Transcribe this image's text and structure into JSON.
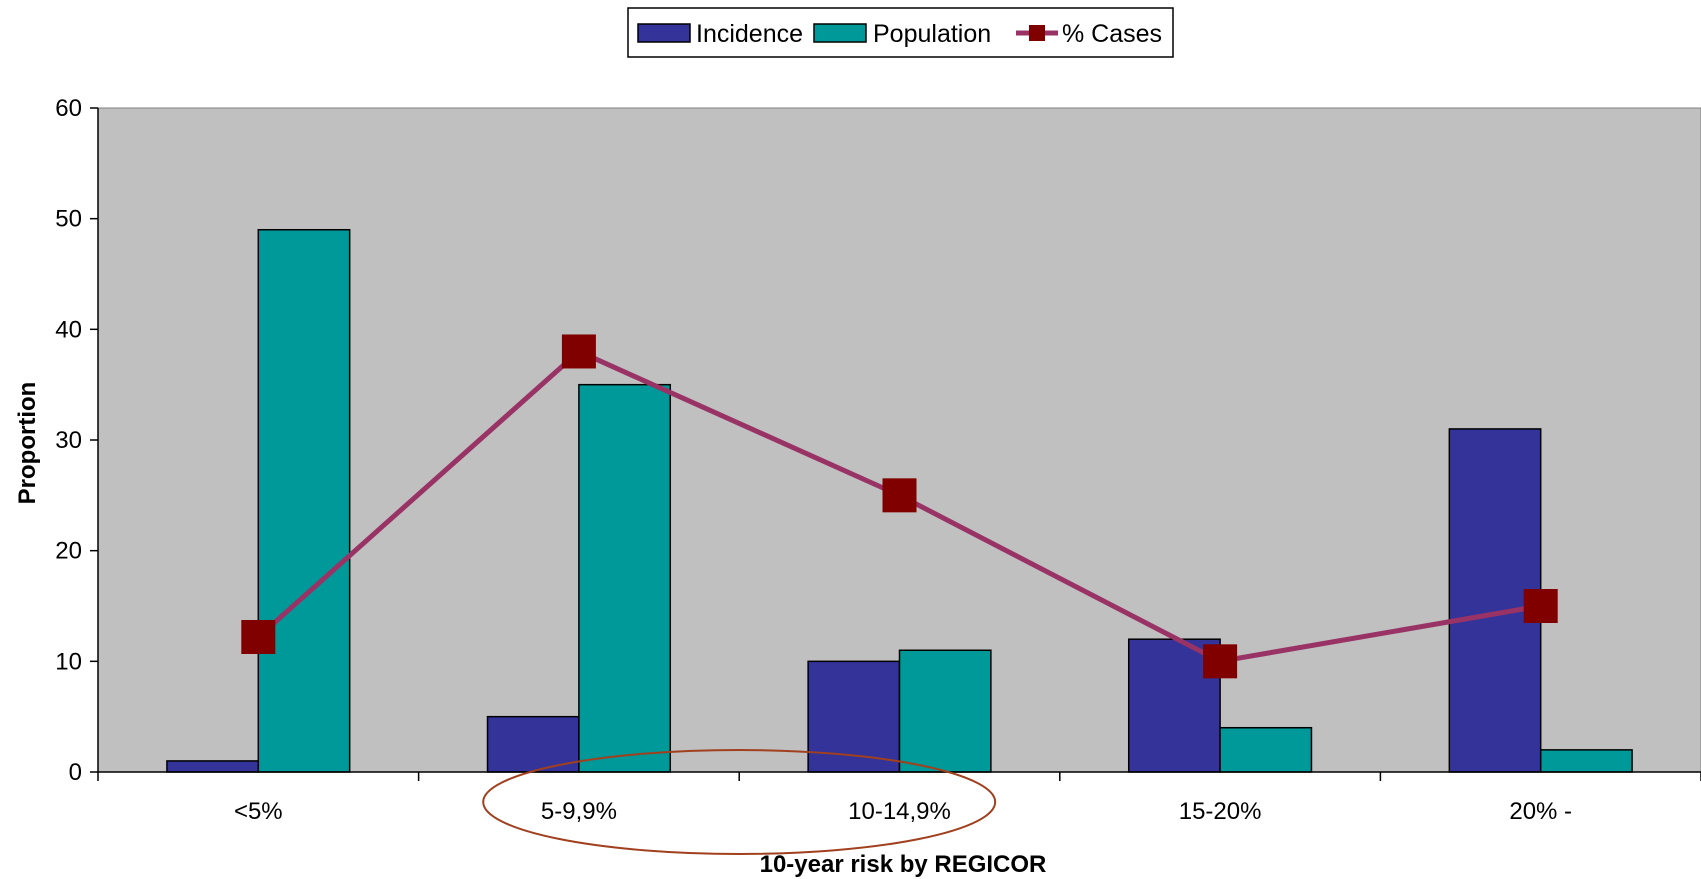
{
  "chart_data": {
    "type": "bar",
    "title": "",
    "xlabel": "10-year risk by REGICOR",
    "ylabel": "Proportion",
    "categories": [
      "<5%",
      "5-9,9%",
      "10-14,9%",
      "15-20%",
      "20% -"
    ],
    "yticks": [
      "0",
      "10",
      "20",
      "30",
      "40",
      "50",
      "60"
    ],
    "ylim": [
      0,
      60
    ],
    "grid": false,
    "legend_position": "top-center",
    "series": [
      {
        "name": "Incidence",
        "type": "bar",
        "color": "#333399",
        "values": [
          1,
          5,
          10,
          12,
          31
        ]
      },
      {
        "name": "Population",
        "type": "bar",
        "color": "#009999",
        "values": [
          49,
          35,
          11,
          4,
          2
        ]
      },
      {
        "name": "% Cases",
        "type": "line",
        "color": "#993366",
        "marker_color": "#800000",
        "marker": "square",
        "values": [
          12.2,
          38,
          25,
          10,
          15
        ]
      }
    ],
    "annotation": {
      "shape": "ellipse",
      "color": "#a0401e",
      "around_categories": [
        "5-9,9%",
        "10-14,9%"
      ]
    },
    "plot_background": "#c0c0c0"
  }
}
